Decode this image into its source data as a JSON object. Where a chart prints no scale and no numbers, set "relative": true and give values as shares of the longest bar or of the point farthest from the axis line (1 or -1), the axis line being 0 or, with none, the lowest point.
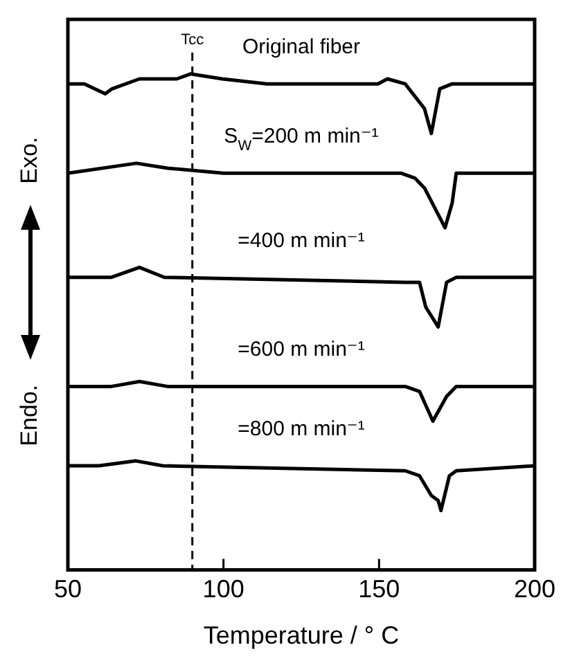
{
  "chart_data": {
    "type": "line",
    "relative": true,
    "xlabel": "Temperature / ° C",
    "xlim": [
      50,
      200
    ],
    "xticks": [
      50,
      100,
      150,
      200
    ],
    "legend": false,
    "marker": "none",
    "line_style": "solid",
    "series": [
      {
        "name": "Original fiber",
        "color": "#000000",
        "x": [
          50,
          55.3,
          62,
          64.2,
          73,
          85,
          89.4,
          99.6,
          114,
          149.6,
          152.7,
          158.4,
          164.6,
          166.8,
          169.5,
          173.5,
          200
        ],
        "values": [
          0.98,
          0.98,
          0.96,
          0.97,
          0.99,
          0.99,
          1,
          0.99,
          0.98,
          0.98,
          0.99,
          0.98,
          0.93,
          0.88,
          0.97,
          0.98,
          0.98
        ]
      },
      {
        "name": "S$_{W}$=200 m min⁻¹",
        "color": "#000000",
        "x": [
          50,
          72,
          82,
          100,
          157,
          161.5,
          164.6,
          171.2,
          173.5,
          174.8,
          200
        ],
        "values": [
          0.8,
          0.82,
          0.81,
          0.8,
          0.8,
          0.79,
          0.77,
          0.69,
          0.74,
          0.8,
          0.8
        ]
      },
      {
        "name": "=400 m min⁻¹",
        "color": "#000000",
        "x": [
          50,
          64,
          73,
          81,
          158.4,
          163,
          165,
          169,
          171.7,
          174.8,
          200
        ],
        "values": [
          0.59,
          0.59,
          0.61,
          0.59,
          0.58,
          0.58,
          0.53,
          0.49,
          0.58,
          0.59,
          0.59
        ]
      },
      {
        "name": "=600 m min⁻¹",
        "color": "#000000",
        "x": [
          50,
          64,
          73,
          82,
          158.4,
          163,
          167.3,
          171.7,
          174.8,
          200
        ],
        "values": [
          0.37,
          0.37,
          0.38,
          0.37,
          0.37,
          0.36,
          0.3,
          0.35,
          0.37,
          0.37
        ]
      },
      {
        "name": "=800 m min⁻¹",
        "color": "#000000",
        "x": [
          50,
          60,
          71.7,
          80.5,
          158.4,
          163,
          166.8,
          169,
          169.9,
          172.6,
          174.8,
          200
        ],
        "values": [
          0.21,
          0.21,
          0.22,
          0.21,
          0.2,
          0.19,
          0.15,
          0.14,
          0.12,
          0.19,
          0.2,
          0.21
        ]
      }
    ],
    "ref_lines": [
      {
        "axis": "x",
        "value": 90,
        "label": "Tcc",
        "line_style": "dashed",
        "color": "#000000"
      }
    ],
    "annotations": [
      "Exo.",
      "Endo."
    ]
  }
}
